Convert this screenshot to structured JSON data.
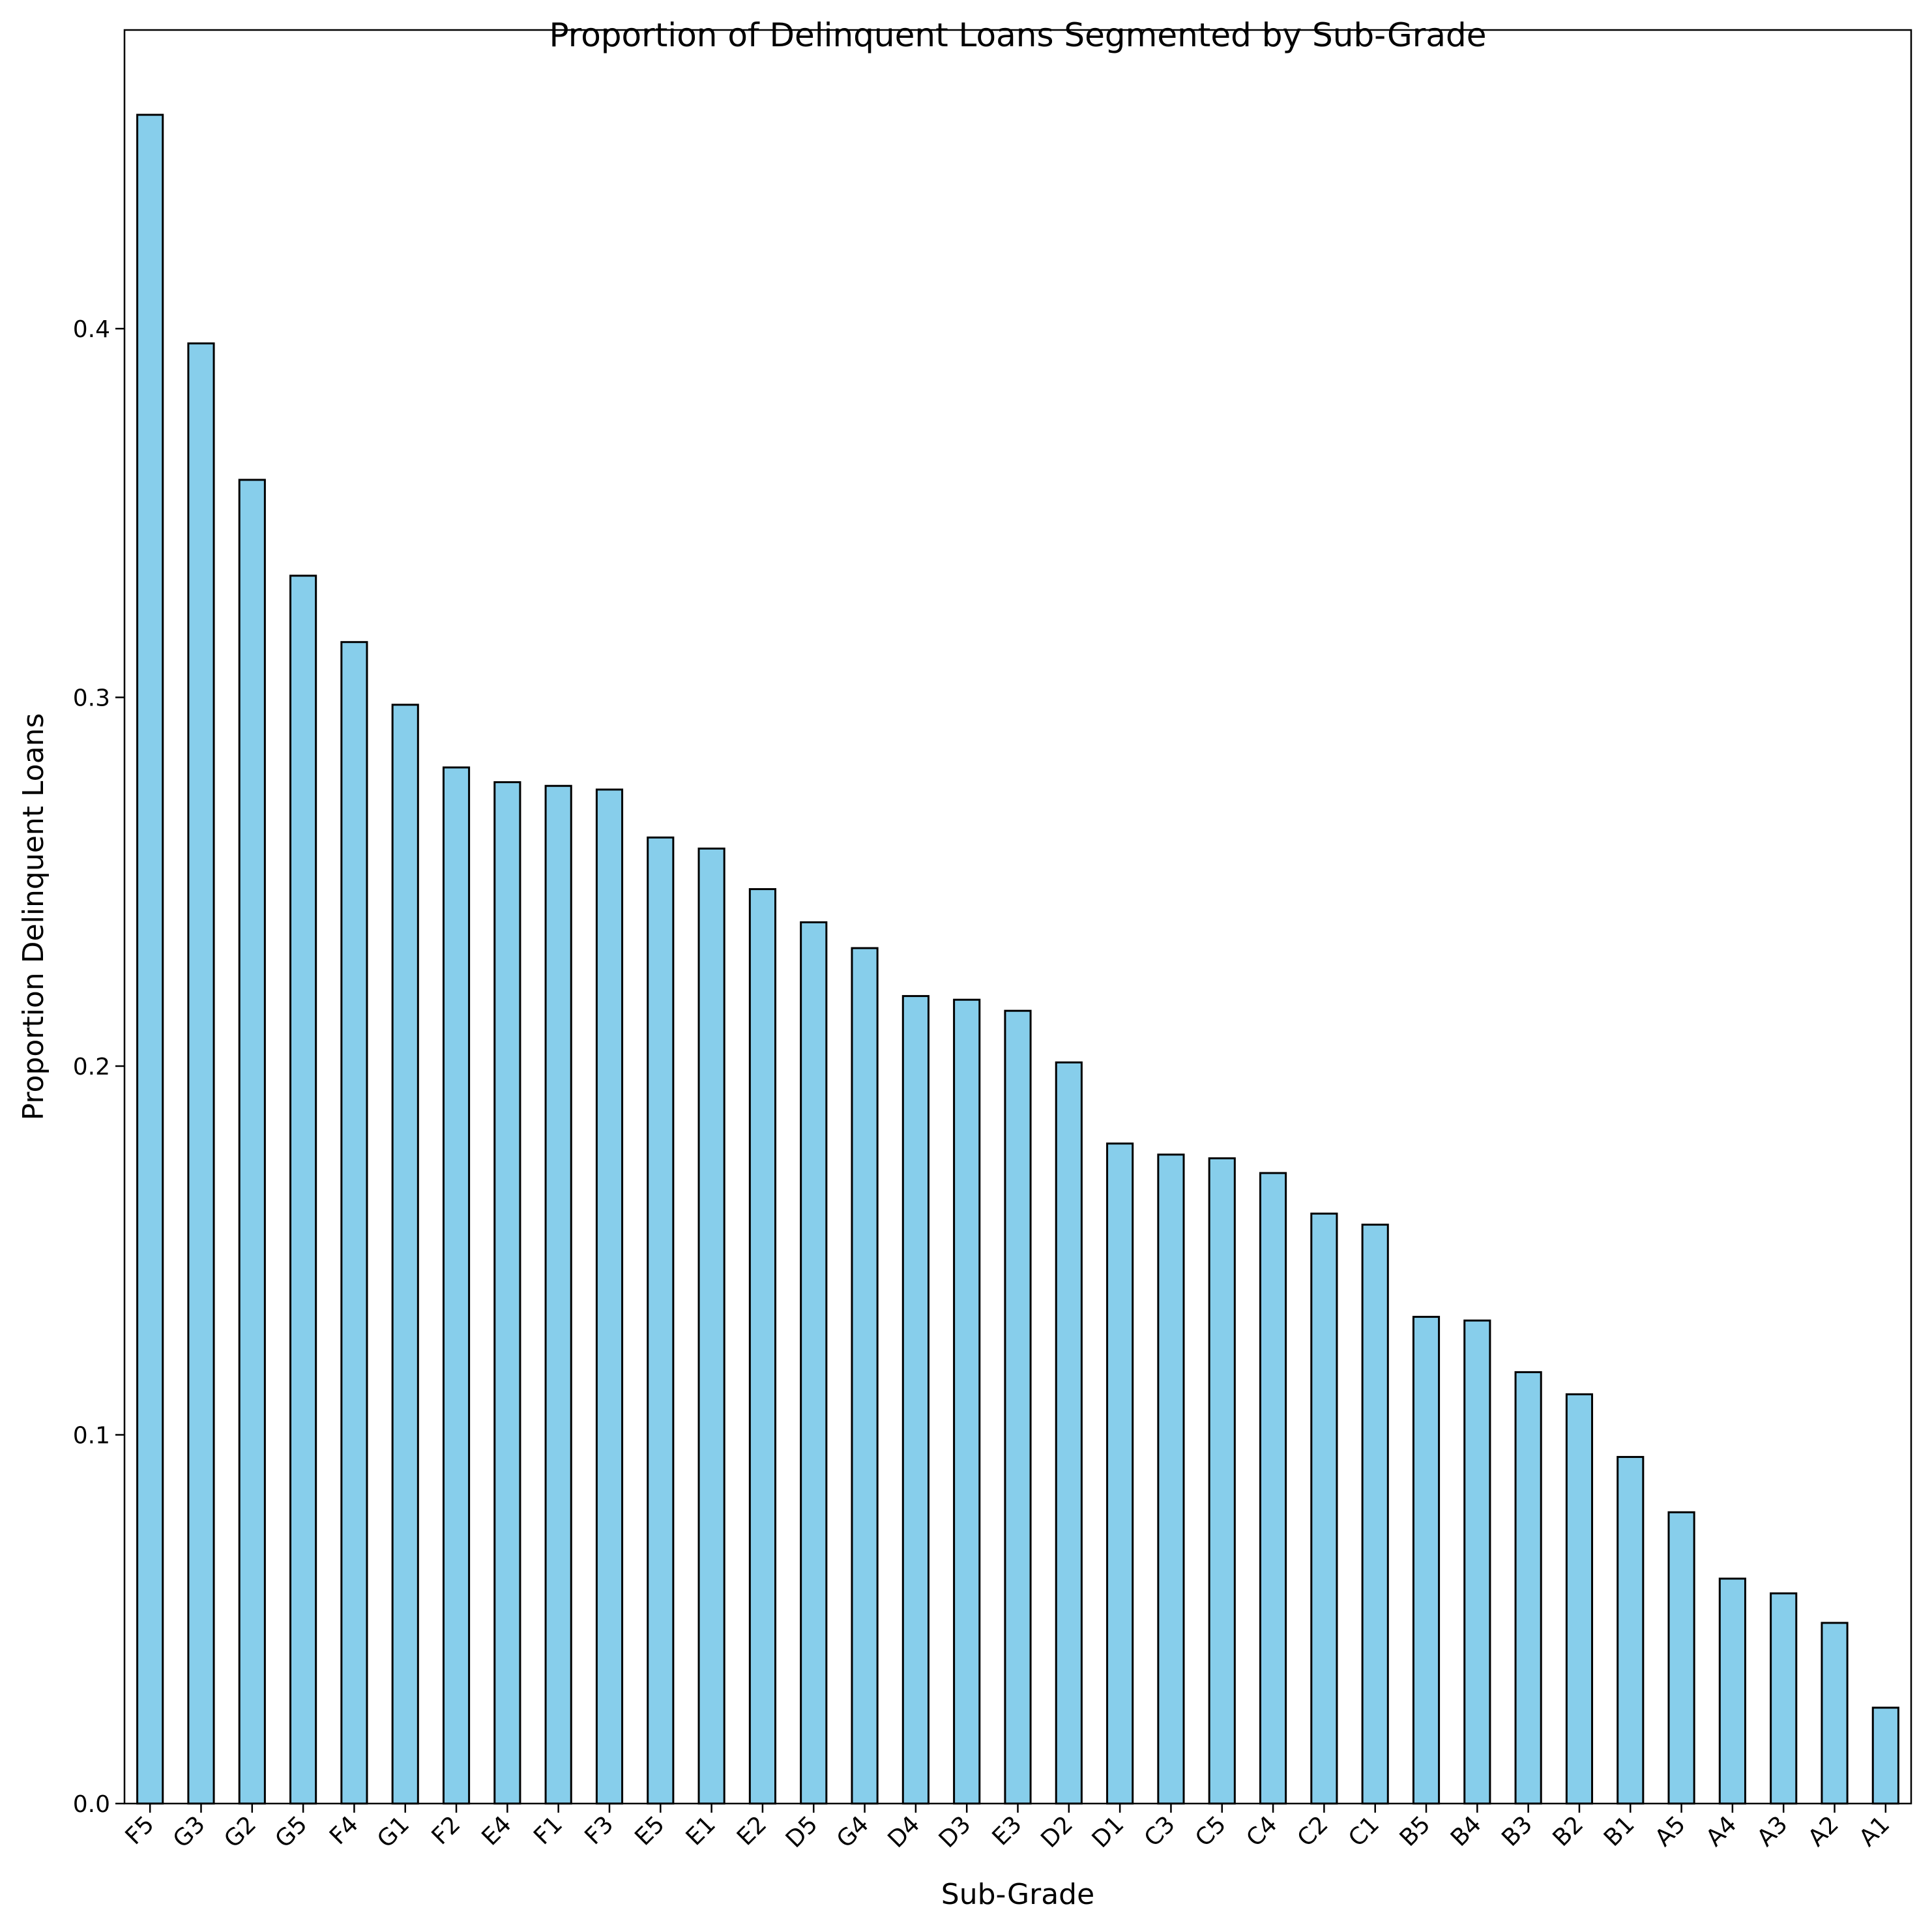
{
  "chart_data": {
    "type": "bar",
    "title": "Proportion of Delinquent Loans Segmented by Sub-Grade",
    "xlabel": "Sub-Grade",
    "ylabel": "Proportion Delinquent Loans",
    "categories": [
      "F5",
      "G3",
      "G2",
      "G5",
      "F4",
      "G1",
      "F2",
      "E4",
      "F1",
      "F3",
      "E5",
      "E1",
      "E2",
      "D5",
      "G4",
      "D4",
      "D3",
      "E3",
      "D2",
      "D1",
      "C3",
      "C5",
      "C4",
      "C2",
      "C1",
      "B5",
      "B4",
      "B3",
      "B2",
      "B1",
      "A5",
      "A4",
      "A3",
      "A2",
      "A1"
    ],
    "values": [
      0.458,
      0.396,
      0.359,
      0.333,
      0.315,
      0.298,
      0.281,
      0.277,
      0.276,
      0.275,
      0.262,
      0.259,
      0.248,
      0.239,
      0.232,
      0.219,
      0.218,
      0.215,
      0.201,
      0.179,
      0.176,
      0.175,
      0.171,
      0.16,
      0.157,
      0.132,
      0.131,
      0.117,
      0.111,
      0.094,
      0.079,
      0.061,
      0.057,
      0.049,
      0.026
    ],
    "yticks": [
      0.0,
      0.1,
      0.2,
      0.3,
      0.4
    ],
    "ytick_labels": [
      "0.0",
      "0.1",
      "0.2",
      "0.3",
      "0.4"
    ],
    "ylim": [
      0,
      0.481
    ],
    "grid": false,
    "bar_color": "#87CEEB",
    "edge_color": "#000000"
  }
}
